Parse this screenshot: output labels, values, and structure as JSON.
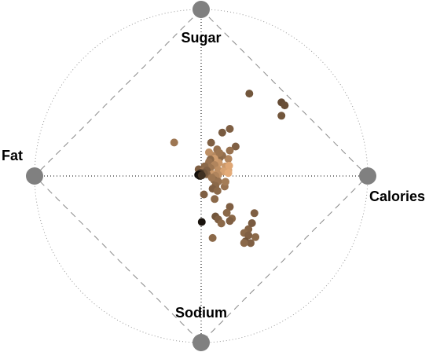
{
  "chart_data": {
    "type": "scatter",
    "subtype": "radviz",
    "anchors": [
      {
        "name": "Sugar",
        "angle_deg": 90
      },
      {
        "name": "Calories",
        "angle_deg": 0
      },
      {
        "name": "Sodium",
        "angle_deg": 270
      },
      {
        "name": "Fat",
        "angle_deg": 180
      }
    ],
    "color_scale": [
      "#000000",
      "#fdbe85"
    ],
    "points": [
      {
        "x": 0.289,
        "y": 0.495,
        "c": 0.45
      },
      {
        "x": 0.482,
        "y": 0.442,
        "c": 0.4
      },
      {
        "x": 0.502,
        "y": 0.424,
        "c": 0.42
      },
      {
        "x": 0.482,
        "y": 0.362,
        "c": 0.45
      },
      {
        "x": 0.207,
        "y": 0.177,
        "c": 0.5
      },
      {
        "x": -0.162,
        "y": 0.201,
        "c": 0.62
      },
      {
        "x": 0.172,
        "y": 0.283,
        "c": 0.5
      },
      {
        "x": 0.127,
        "y": 0.261,
        "c": 0.48
      },
      {
        "x": 0.172,
        "y": 0.153,
        "c": 0.6
      },
      {
        "x": 0.163,
        "y": 0.103,
        "c": 0.7
      },
      {
        "x": 0.06,
        "y": 0.2,
        "c": 0.5
      },
      {
        "x": 0.127,
        "y": 0.123,
        "c": 0.58
      },
      {
        "x": 0.11,
        "y": 0.106,
        "c": 0.55
      },
      {
        "x": 0.076,
        "y": 0.121,
        "c": 0.72
      },
      {
        "x": 0.106,
        "y": 0.079,
        "c": 0.8
      },
      {
        "x": 0.096,
        "y": 0.16,
        "c": 0.6
      },
      {
        "x": 0.11,
        "y": 0.138,
        "c": 0.62
      },
      {
        "x": 0.047,
        "y": 0.142,
        "c": 0.75
      },
      {
        "x": 0.08,
        "y": 0.104,
        "c": 0.82
      },
      {
        "x": 0.055,
        "y": 0.099,
        "c": 0.55
      },
      {
        "x": 0.047,
        "y": 0.084,
        "c": 0.6
      },
      {
        "x": 0.081,
        "y": 0.066,
        "c": 0.7
      },
      {
        "x": 0.146,
        "y": 0.058,
        "c": 0.8
      },
      {
        "x": 0.163,
        "y": 0.034,
        "c": 0.85
      },
      {
        "x": 0.168,
        "y": 0.062,
        "c": 0.88
      },
      {
        "x": 0.055,
        "y": 0.048,
        "c": 0.62
      },
      {
        "x": 0.021,
        "y": 0.058,
        "c": 0.55
      },
      {
        "x": -0.015,
        "y": 0.04,
        "c": 0.5
      },
      {
        "x": 0.009,
        "y": 0.029,
        "c": 0.6
      },
      {
        "x": 0.034,
        "y": 0.033,
        "c": 0.5
      },
      {
        "x": 0.103,
        "y": 0.036,
        "c": 0.75
      },
      {
        "x": 0.136,
        "y": 0.027,
        "c": 0.85
      },
      {
        "x": 0.069,
        "y": 0.011,
        "c": 0.8
      },
      {
        "x": 0.103,
        "y": 0.007,
        "c": 0.75
      },
      {
        "x": 0.086,
        "y": 0.001,
        "c": 0.7
      },
      {
        "x": 0.163,
        "y": 0.018,
        "c": 0.9
      },
      {
        "x": 0.034,
        "y": 0.011,
        "c": 0.52
      },
      {
        "x": 0.017,
        "y": 0.018,
        "c": 0.45
      },
      {
        "x": -0.004,
        "y": 0.018,
        "c": 0.3
      },
      {
        "x": -0.009,
        "y": 0.011,
        "c": 0.18
      },
      {
        "x": -0.018,
        "y": 0.007,
        "c": 0.05
      },
      {
        "x": -0.009,
        "y": 0.001,
        "c": 0.1
      },
      {
        "x": 0.004,
        "y": 0.004,
        "c": 0.25
      },
      {
        "x": 0.078,
        "y": -0.024,
        "c": 0.55
      },
      {
        "x": 0.064,
        "y": -0.01,
        "c": 0.62
      },
      {
        "x": 0.103,
        "y": -0.033,
        "c": 0.6
      },
      {
        "x": 0.086,
        "y": -0.059,
        "c": 0.55
      },
      {
        "x": 0.141,
        "y": -0.063,
        "c": 0.6
      },
      {
        "x": 0.146,
        "y": -0.035,
        "c": 0.65
      },
      {
        "x": 0.069,
        "y": -0.076,
        "c": 0.5
      },
      {
        "x": 0.098,
        "y": -0.089,
        "c": 0.55
      },
      {
        "x": 0.017,
        "y": -0.111,
        "c": 0.5
      },
      {
        "x": 0.081,
        "y": -0.138,
        "c": 0.55
      },
      {
        "x": 0.172,
        "y": -0.185,
        "c": 0.5
      },
      {
        "x": 0.154,
        "y": -0.221,
        "c": 0.55
      },
      {
        "x": 0.32,
        "y": -0.223,
        "c": 0.5
      },
      {
        "x": 0.086,
        "y": -0.243,
        "c": 0.45
      },
      {
        "x": 0.185,
        "y": -0.255,
        "c": 0.55
      },
      {
        "x": 0.004,
        "y": -0.276,
        "c": 0.1
      },
      {
        "x": 0.103,
        "y": -0.261,
        "c": 0.5
      },
      {
        "x": 0.172,
        "y": -0.27,
        "c": 0.5
      },
      {
        "x": 0.121,
        "y": -0.285,
        "c": 0.55
      },
      {
        "x": 0.284,
        "y": -0.319,
        "c": 0.52
      },
      {
        "x": 0.305,
        "y": -0.283,
        "c": 0.48
      },
      {
        "x": 0.258,
        "y": -0.342,
        "c": 0.55
      },
      {
        "x": 0.284,
        "y": -0.356,
        "c": 0.5
      },
      {
        "x": 0.326,
        "y": -0.367,
        "c": 0.55
      },
      {
        "x": 0.069,
        "y": -0.372,
        "c": 0.55
      },
      {
        "x": 0.266,
        "y": -0.393,
        "c": 0.45
      },
      {
        "x": 0.297,
        "y": -0.403,
        "c": 0.5
      },
      {
        "x": 0.258,
        "y": -0.402,
        "c": 0.55
      }
    ]
  }
}
